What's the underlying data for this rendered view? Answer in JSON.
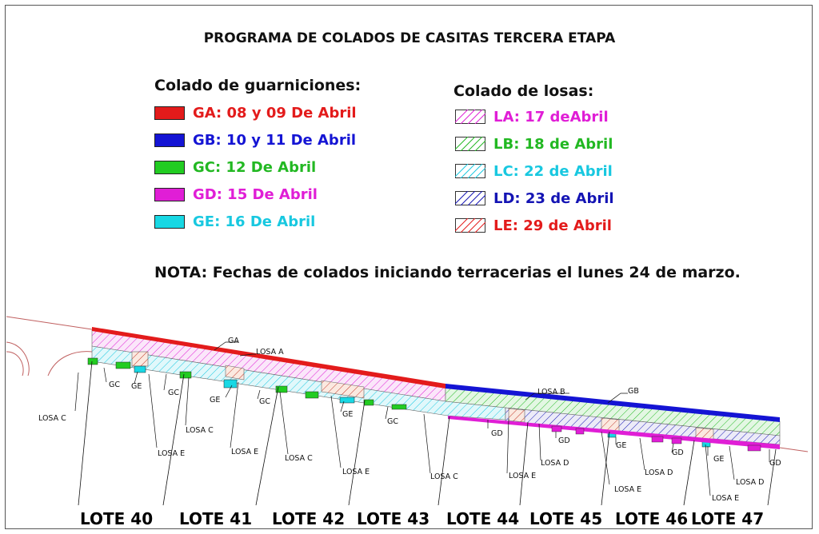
{
  "title": "PROGRAMA DE COLADOS DE CASITAS TERCERA ETAPA",
  "guarniciones": {
    "heading": "Colado de guarniciones:",
    "items": [
      {
        "label": "GA: 08 y 09 De Abril",
        "color": "#e31b1b"
      },
      {
        "label": "GB: 10 y 11 De Abril",
        "color": "#1414d4"
      },
      {
        "label": "GC: 12 De Abril",
        "color": "#22cc22"
      },
      {
        "label": "GD: 15 De Abril",
        "color": "#e01ed6"
      },
      {
        "label": "GE: 16 De Abril",
        "color": "#18d8e4"
      }
    ]
  },
  "losas": {
    "heading": "Colado de losas:",
    "items": [
      {
        "label": "LA: 17 deAbril",
        "color": "#e01ed6"
      },
      {
        "label": "LB: 18 de Abril",
        "color": "#22b822"
      },
      {
        "label": "LC: 22 de Abril",
        "color": "#18c8e0"
      },
      {
        "label": "LD: 23 de Abril",
        "color": "#1414b4"
      },
      {
        "label": "LE: 29 de Abril",
        "color": "#e31b1b"
      }
    ]
  },
  "nota": "NOTA: Fechas de colados iniciando terracerias el lunes 24 de marzo.",
  "plan_labels": {
    "ga": "GA",
    "gb": "GB",
    "losa_a": "LOSA A",
    "losa_b": "LOSA B",
    "losa_c": "LOSA C",
    "losa_d": "LOSA D",
    "losa_e": "LOSA E",
    "gc": "GC",
    "gd": "GD",
    "ge": "GE"
  },
  "lotes": [
    "LOTE 40",
    "LOTE 41",
    "LOTE 42",
    "LOTE 43",
    "LOTE 44",
    "LOTE 45",
    "LOTE 46",
    "LOTE 47"
  ]
}
